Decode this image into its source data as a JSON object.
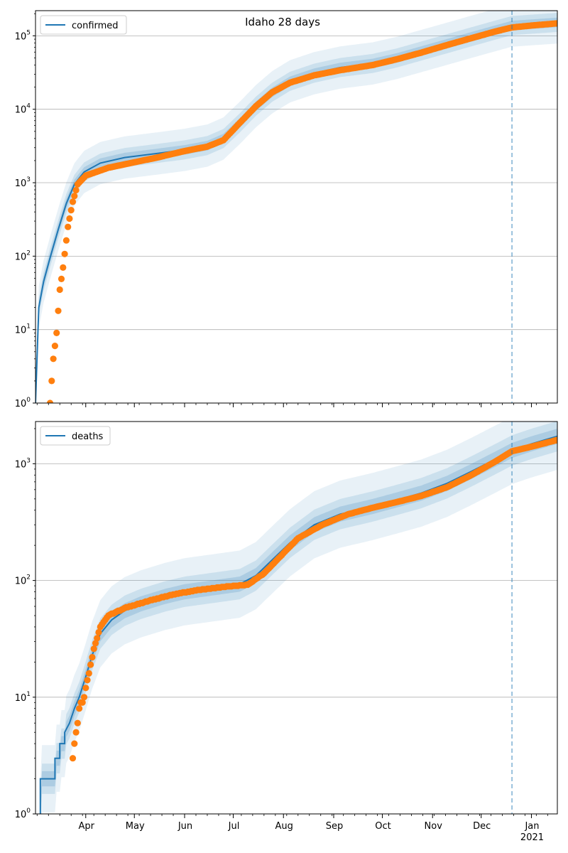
{
  "title": "Idaho 28 days",
  "colors": {
    "model": "#1f77b4",
    "observed": "#ff7f0e",
    "band": "#1f77b4",
    "grid": "#b0b0b0",
    "cutoff": "#1f77b4"
  },
  "x_axis": {
    "start": "2020-03-01",
    "end": "2021-01-17",
    "cutoff_date": "2020-12-20",
    "months": [
      {
        "date": "2020-04-01",
        "label": "Apr"
      },
      {
        "date": "2020-05-01",
        "label": "May"
      },
      {
        "date": "2020-06-01",
        "label": "Jun"
      },
      {
        "date": "2020-07-01",
        "label": "Jul"
      },
      {
        "date": "2020-08-01",
        "label": "Aug"
      },
      {
        "date": "2020-09-01",
        "label": "Sep"
      },
      {
        "date": "2020-10-01",
        "label": "Oct"
      },
      {
        "date": "2020-11-01",
        "label": "Nov"
      },
      {
        "date": "2020-12-01",
        "label": "Dec"
      },
      {
        "date": "2021-01-01",
        "label": "Jan"
      }
    ],
    "year_label": "2021"
  },
  "chart_data": [
    {
      "type": "line",
      "legend": "confirmed",
      "legend_position": "upper-left",
      "yscale": "log",
      "ylim": [
        1,
        220000
      ],
      "yticks": [
        {
          "value": 1,
          "base": "10",
          "exp": "0"
        },
        {
          "value": 10,
          "base": "10",
          "exp": "1"
        },
        {
          "value": 100,
          "base": "10",
          "exp": "2"
        },
        {
          "value": 1000,
          "base": "10",
          "exp": "3"
        },
        {
          "value": 10000,
          "base": "10",
          "exp": "4"
        },
        {
          "value": 100000,
          "base": "10",
          "exp": "5"
        }
      ],
      "grid": true,
      "model": [
        [
          "2020-03-01",
          1
        ],
        [
          "2020-03-03",
          20
        ],
        [
          "2020-03-06",
          45
        ],
        [
          "2020-03-10",
          95
        ],
        [
          "2020-03-15",
          230
        ],
        [
          "2020-03-20",
          520
        ],
        [
          "2020-03-25",
          950
        ],
        [
          "2020-03-31",
          1400
        ],
        [
          "2020-04-10",
          1850
        ],
        [
          "2020-04-25",
          2200
        ],
        [
          "2020-05-15",
          2500
        ],
        [
          "2020-06-01",
          2800
        ],
        [
          "2020-06-15",
          3200
        ],
        [
          "2020-06-25",
          4000
        ],
        [
          "2020-07-05",
          6500
        ],
        [
          "2020-07-15",
          11000
        ],
        [
          "2020-07-25",
          17000
        ],
        [
          "2020-08-05",
          24000
        ],
        [
          "2020-08-20",
          31000
        ],
        [
          "2020-09-05",
          37000
        ],
        [
          "2020-09-25",
          42000
        ],
        [
          "2020-10-10",
          50000
        ],
        [
          "2020-10-25",
          62000
        ],
        [
          "2020-11-10",
          78000
        ],
        [
          "2020-11-25",
          97000
        ],
        [
          "2020-12-10",
          120000
        ],
        [
          "2020-12-20",
          138000
        ]
      ],
      "band_widths": [
        0.18,
        0.1,
        0.05
      ],
      "observed_knots": [
        [
          "2020-03-10",
          1
        ],
        [
          "2020-03-12",
          4
        ],
        [
          "2020-03-14",
          9
        ],
        [
          "2020-03-16",
          35
        ],
        [
          "2020-03-18",
          70
        ],
        [
          "2020-03-21",
          250
        ],
        [
          "2020-03-24",
          550
        ],
        [
          "2020-03-27",
          950
        ],
        [
          "2020-04-01",
          1250
        ],
        [
          "2020-04-15",
          1600
        ],
        [
          "2020-05-01",
          1900
        ],
        [
          "2020-05-15",
          2200
        ],
        [
          "2020-06-01",
          2700
        ],
        [
          "2020-06-15",
          3100
        ],
        [
          "2020-06-25",
          3800
        ],
        [
          "2020-07-05",
          6500
        ],
        [
          "2020-07-15",
          11000
        ],
        [
          "2020-07-25",
          17000
        ],
        [
          "2020-08-05",
          23000
        ],
        [
          "2020-08-20",
          29000
        ],
        [
          "2020-09-05",
          34000
        ],
        [
          "2020-09-25",
          40000
        ],
        [
          "2020-10-10",
          48000
        ],
        [
          "2020-10-25",
          59000
        ],
        [
          "2020-11-10",
          75000
        ],
        [
          "2020-11-25",
          93000
        ],
        [
          "2020-12-10",
          115000
        ],
        [
          "2020-12-20",
          130000
        ],
        [
          "2021-01-01",
          138000
        ],
        [
          "2021-01-17",
          148000
        ]
      ]
    },
    {
      "type": "line",
      "legend": "deaths",
      "legend_position": "upper-left",
      "yscale": "log",
      "ylim": [
        1,
        2300
      ],
      "yticks": [
        {
          "value": 1,
          "base": "10",
          "exp": "0"
        },
        {
          "value": 10,
          "base": "10",
          "exp": "1"
        },
        {
          "value": 100,
          "base": "10",
          "exp": "2"
        },
        {
          "value": 1000,
          "base": "10",
          "exp": "3"
        }
      ],
      "grid": true,
      "model": [
        [
          "2020-03-04",
          1
        ],
        [
          "2020-03-04",
          2
        ],
        [
          "2020-03-13",
          2
        ],
        [
          "2020-03-13",
          3
        ],
        [
          "2020-03-16",
          3
        ],
        [
          "2020-03-16",
          4
        ],
        [
          "2020-03-19",
          4
        ],
        [
          "2020-03-19",
          5
        ],
        [
          "2020-03-22",
          6
        ],
        [
          "2020-03-25",
          8
        ],
        [
          "2020-03-28",
          10
        ],
        [
          "2020-04-01",
          15
        ],
        [
          "2020-04-05",
          23
        ],
        [
          "2020-04-10",
          35
        ],
        [
          "2020-04-17",
          46
        ],
        [
          "2020-04-25",
          55
        ],
        [
          "2020-05-05",
          63
        ],
        [
          "2020-05-20",
          73
        ],
        [
          "2020-06-01",
          80
        ],
        [
          "2020-06-20",
          87
        ],
        [
          "2020-07-05",
          93
        ],
        [
          "2020-07-15",
          110
        ],
        [
          "2020-07-25",
          150
        ],
        [
          "2020-08-05",
          210
        ],
        [
          "2020-08-20",
          300
        ],
        [
          "2020-09-05",
          370
        ],
        [
          "2020-09-25",
          430
        ],
        [
          "2020-10-10",
          490
        ],
        [
          "2020-10-25",
          560
        ],
        [
          "2020-11-10",
          680
        ],
        [
          "2020-11-25",
          860
        ],
        [
          "2020-12-10",
          1100
        ],
        [
          "2020-12-20",
          1300
        ],
        [
          "2021-01-01",
          1480
        ],
        [
          "2021-01-17",
          1720
        ]
      ],
      "band_widths": [
        0.18,
        0.1,
        0.05
      ],
      "observed_knots": [
        [
          "2020-03-24",
          3
        ],
        [
          "2020-03-26",
          5
        ],
        [
          "2020-03-28",
          8
        ],
        [
          "2020-03-31",
          10
        ],
        [
          "2020-04-03",
          16
        ],
        [
          "2020-04-06",
          26
        ],
        [
          "2020-04-10",
          40
        ],
        [
          "2020-04-15",
          50
        ],
        [
          "2020-04-25",
          58
        ],
        [
          "2020-05-10",
          67
        ],
        [
          "2020-05-25",
          76
        ],
        [
          "2020-06-10",
          83
        ],
        [
          "2020-06-25",
          88
        ],
        [
          "2020-07-10",
          92
        ],
        [
          "2020-07-20",
          115
        ],
        [
          "2020-07-30",
          160
        ],
        [
          "2020-08-10",
          230
        ],
        [
          "2020-08-25",
          300
        ],
        [
          "2020-09-10",
          370
        ],
        [
          "2020-09-25",
          420
        ],
        [
          "2020-10-10",
          470
        ],
        [
          "2020-10-25",
          530
        ],
        [
          "2020-11-10",
          630
        ],
        [
          "2020-11-25",
          800
        ],
        [
          "2020-12-10",
          1050
        ],
        [
          "2020-12-20",
          1280
        ],
        [
          "2021-01-01",
          1400
        ],
        [
          "2021-01-17",
          1600
        ]
      ]
    }
  ]
}
